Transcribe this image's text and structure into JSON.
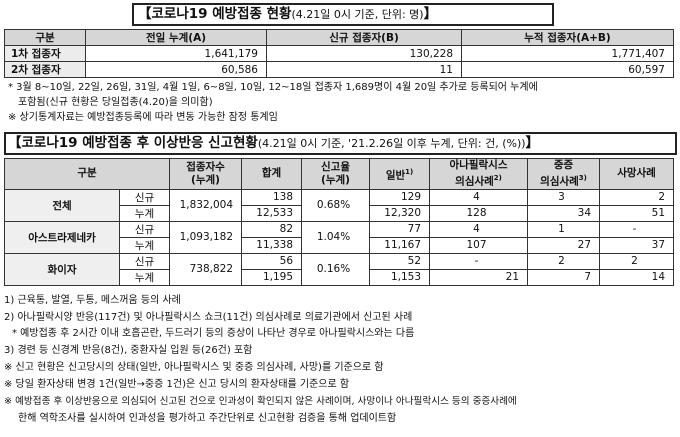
{
  "title1": {
    "open": "【",
    "main": "코로나19 예방접종 현황",
    "sub": "(4.21일 0시 기준, 단위: 명)",
    "close": "】"
  },
  "table1": {
    "headers": [
      "구분",
      "전일 누계(A)",
      "신규 접종자(B)",
      "누적 접종자(A+B)"
    ],
    "rows": [
      {
        "label": "1차 접종자",
        "prev": "1,641,179",
        "new": "130,228",
        "total": "1,771,407"
      },
      {
        "label": "2차 접종자",
        "prev": "60,586",
        "new": "11",
        "total": "60,597"
      }
    ]
  },
  "notes1": [
    "* 3월 8~10일, 22일, 26일, 31일, 4월 1일, 6~8일, 10일, 12~18일 접종자 1,689명이 4월 20일 추가로 등록되어 누계에",
    "포함됨(신규 현황은 당일접종(4.20)을 의미함)",
    "※ 상기통계자료는 예방접종등록에 따라 변동 가능한 잠정 통계임"
  ],
  "title2": {
    "open": "【",
    "main": "코로나19 예방접종 후 이상반응 신고현황",
    "sub": "(4.21일 0시 기준, '21.2.26일 이후 누계, 단위: 건, (%))",
    "close": "】"
  },
  "table2": {
    "headers": {
      "group": "구분",
      "vaccinated": [
        "접종자수",
        "(누계)"
      ],
      "total": "합계",
      "rate": [
        "신고율",
        "(누계)"
      ],
      "general": "일반",
      "general_sup": "1)",
      "anaphylaxis": [
        "아나필락시스",
        "의심사례"
      ],
      "anaphylaxis_sup": "2)",
      "severe": [
        "중증",
        "의심사례"
      ],
      "severe_sup": "3)",
      "death": "사망사례"
    },
    "groups": [
      {
        "name": "전체",
        "vaccinated": "1,832,004",
        "rate": "0.68%",
        "rows": [
          {
            "kind": "신규",
            "total": "138",
            "general": "129",
            "anaphylaxis": "4",
            "severe": "3",
            "death": "2"
          },
          {
            "kind": "누계",
            "total": "12,533",
            "general": "12,320",
            "anaphylaxis": "128",
            "severe": "34",
            "death": "51"
          }
        ]
      },
      {
        "name": "아스트라제네카",
        "vaccinated": "1,093,182",
        "rate": "1.04%",
        "rows": [
          {
            "kind": "신규",
            "total": "82",
            "general": "77",
            "anaphylaxis": "4",
            "severe": "1",
            "death": "-"
          },
          {
            "kind": "누계",
            "total": "11,338",
            "general": "11,167",
            "anaphylaxis": "107",
            "severe": "27",
            "death": "37"
          }
        ]
      },
      {
        "name": "화이자",
        "vaccinated": "738,822",
        "rate": "0.16%",
        "rows": [
          {
            "kind": "신규",
            "total": "56",
            "general": "52",
            "anaphylaxis": "-",
            "severe": "2",
            "death": "2"
          },
          {
            "kind": "누계",
            "total": "1,195",
            "general": "1,153",
            "anaphylaxis": "21",
            "severe": "7",
            "death": "14"
          }
        ]
      }
    ]
  },
  "notes2": [
    "1) 근육통, 발열, 두통, 메스꺼움 등의 사례",
    "2) 아나필락시양 반응(117건) 및 아나필락시스 쇼크(11건) 의심사례로 의료기관에서 신고된 사례",
    "* 예방접종 후 2시간 이내 호흡곤란, 두드러기 등의 증상이 나타난 경우로 아나필락시스와는 다름",
    "3) 경련 등 신경계 반응(8건), 중환자실 입원 등(26건) 포함",
    "※ 신고 현황은 신고당시의 상태(일반, 아나필락시스 및 중증 의심사례, 사망)를 기준으로 함",
    "※ 당일 환자상태 변경 1건(일반→중증 1건)은 신고 당시의 환자상태를 기준으로 함",
    "※ 예방접종 후 이상반응으로 의심되어 신고된 건으로 인과성이 확인되지 않은 사례이며, 사망이나 아나필락시스 등의 중증사례에",
    "한해 역학조사를 실시하여 인과성을 평가하고 주간단위로 신고현황 검증을 통해 업데이트함"
  ]
}
